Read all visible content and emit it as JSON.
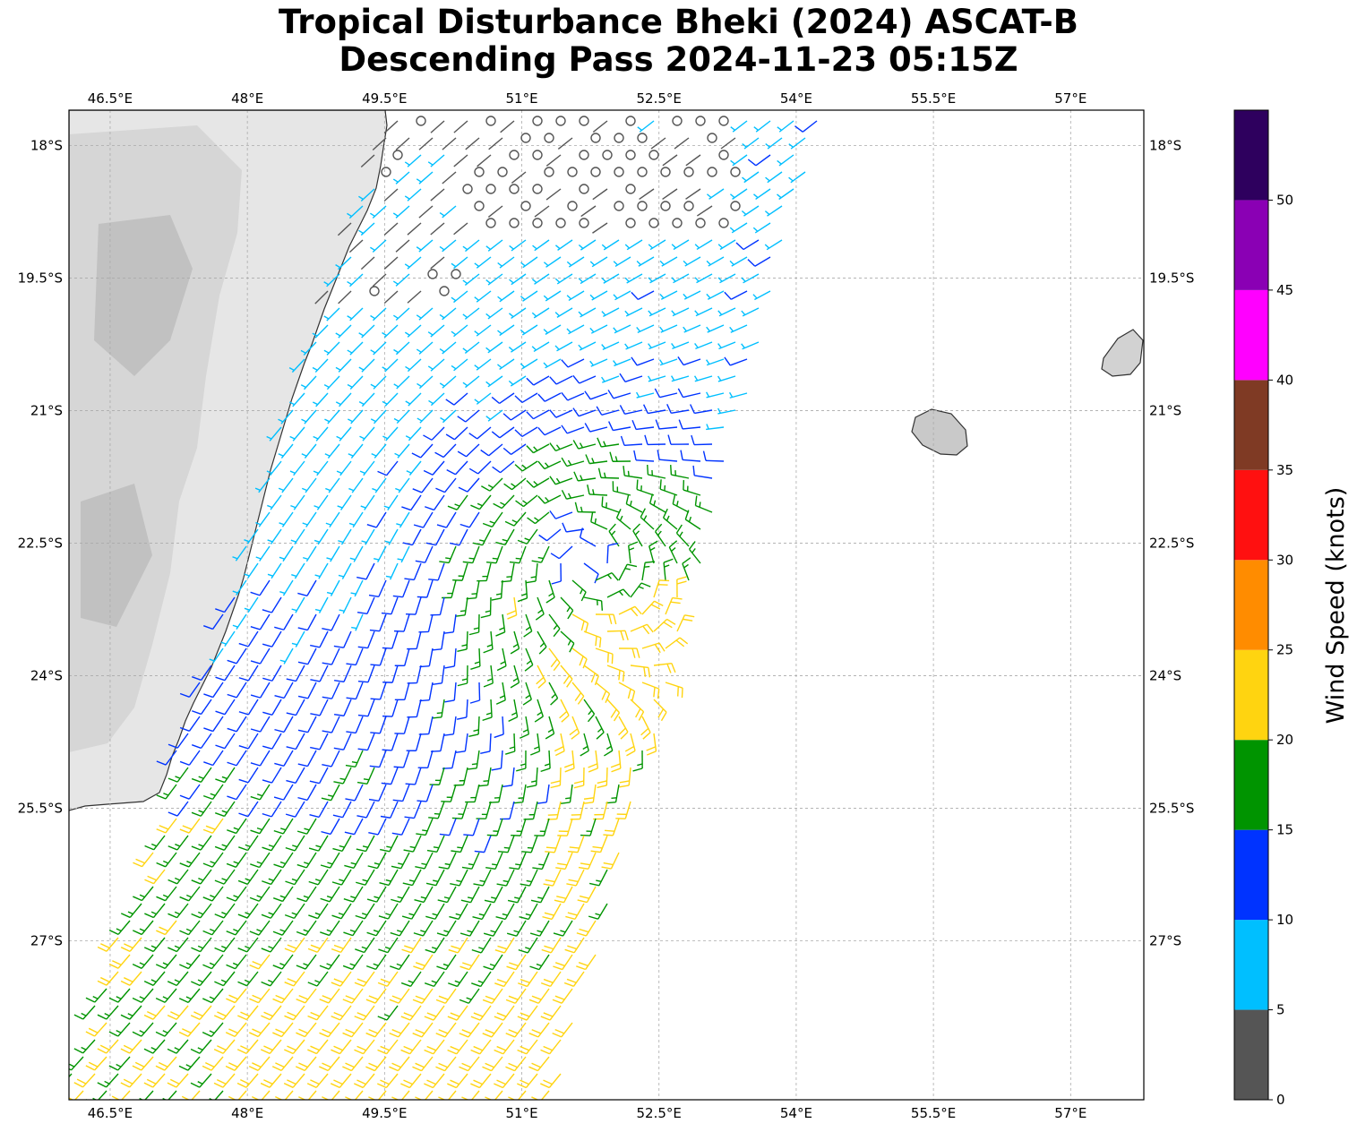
{
  "title": {
    "line1": "Tropical Disturbance Bheki (2024) ASCAT-B",
    "line2": "Descending Pass 2024-11-23 05:15Z"
  },
  "map": {
    "lon_range": [
      46.05,
      57.8
    ],
    "lat_range": [
      -28.8,
      -17.6
    ],
    "lon_ticks": [
      "46.5°E",
      "48°E",
      "49.5°E",
      "51°E",
      "52.5°E",
      "54°E",
      "55.5°E",
      "57°E"
    ],
    "lon_tick_values": [
      46.5,
      48,
      49.5,
      51,
      52.5,
      54,
      55.5,
      57
    ],
    "lat_ticks": [
      "18°S",
      "19.5°S",
      "21°S",
      "22.5°S",
      "24°S",
      "25.5°S",
      "27°S"
    ],
    "lat_tick_values": [
      -18,
      -19.5,
      -21,
      -22.5,
      -24,
      -25.5,
      -27
    ],
    "gridlines": true,
    "land_color": "#f0f0f0",
    "coast_color": "#333333",
    "calm_symbol": "circle",
    "storm_center": {
      "lon": 51.7,
      "lat": -22.7
    }
  },
  "colorbar": {
    "label": "Wind Speed (knots)",
    "ticks": [
      "0",
      "5",
      "10",
      "15",
      "20",
      "25",
      "30",
      "35",
      "40",
      "45",
      "50"
    ],
    "bins": [
      {
        "min": 0,
        "max": 5,
        "color": "#555555"
      },
      {
        "min": 5,
        "max": 10,
        "color": "#00bfff"
      },
      {
        "min": 10,
        "max": 15,
        "color": "#0033ff"
      },
      {
        "min": 15,
        "max": 20,
        "color": "#009400"
      },
      {
        "min": 20,
        "max": 25,
        "color": "#ffd410"
      },
      {
        "min": 25,
        "max": 30,
        "color": "#ff8c00"
      },
      {
        "min": 30,
        "max": 35,
        "color": "#ff1010"
      },
      {
        "min": 35,
        "max": 40,
        "color": "#7f3a24"
      },
      {
        "min": 40,
        "max": 45,
        "color": "#ff00ff"
      },
      {
        "min": 45,
        "max": 50,
        "color": "#8a00b4"
      },
      {
        "min": 50,
        "max": 55,
        "color": "#2e005e"
      }
    ]
  }
}
